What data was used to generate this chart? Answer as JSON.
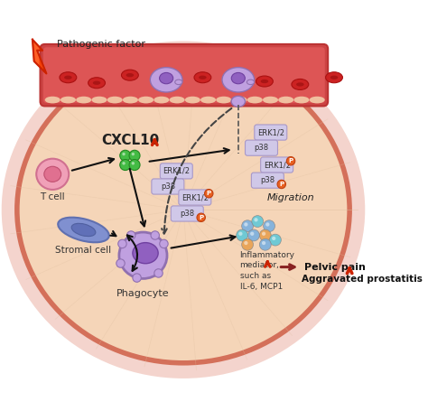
{
  "bg_color": "#ffffff",
  "skin_fill": "#f5d5b8",
  "skin_edge": "#d4705a",
  "cxcl10_label": "CXCL10",
  "up_arrow_color": "#cc2200",
  "tcell_label": "T cell",
  "stromal_label": "Stromal cell",
  "phagocyte_label": "Phagocyte",
  "migration_label": "Migration",
  "inflammatory_label": "Inflammatory\nmediator,\nsuch as\nIL-6, MCP1",
  "pelvic_label": "Pelvic pain",
  "aggravated_label": "Aggravated prostatitis",
  "pathogenic_label": "Pathogenic factor",
  "green_dot": "#44bb44",
  "orange_dot": "#e8a050",
  "blue_dot": "#7ab0e0",
  "cyan_dot": "#60c8d8",
  "purple_cell": "#c0a0e0",
  "purple_cell_edge": "#9070b0",
  "purple_nuc": "#9060c0",
  "purple_nuc_edge": "#7040a0",
  "pink_cell": "#f0a0b8",
  "pink_cell_edge": "#d07090",
  "pink_nuc": "#e07090",
  "pink_nuc_edge": "#c05070",
  "blue_stromal": "#8090d0",
  "blue_stromal_edge": "#6070b0",
  "pill_face": "#d0c8e8",
  "pill_edge": "#a898c8",
  "p_circle_face": "#e86020",
  "p_circle_edge": "#c04010",
  "rbc_color": "#cc2222",
  "rbc_edge": "#aa1111",
  "vessel_color": "#cc4444",
  "vessel_edge": "#bb3333"
}
